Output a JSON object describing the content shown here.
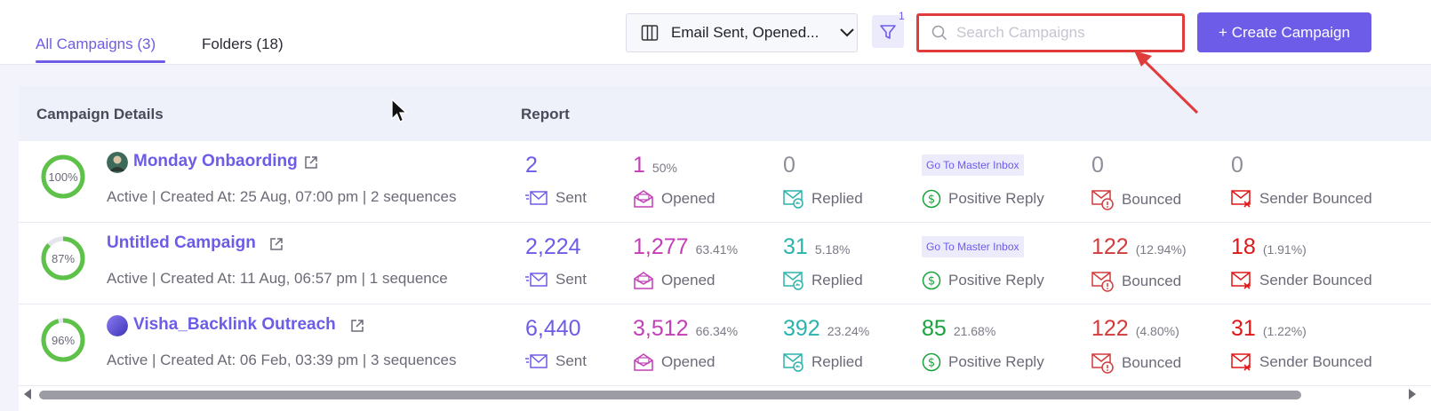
{
  "tabs": [
    {
      "label": "All Campaigns (3)",
      "active": true
    },
    {
      "label": "Folders (18)",
      "active": false
    }
  ],
  "columns_select": {
    "icon": "columns-icon",
    "value": "Email Sent, Opened..."
  },
  "filter": {
    "icon": "filter-icon",
    "count": "1"
  },
  "search": {
    "icon": "search-icon",
    "placeholder": "Search Campaigns",
    "value": ""
  },
  "create_button": {
    "label": "+ Create Campaign"
  },
  "table": {
    "headers": {
      "details": "Campaign Details",
      "report": "Report"
    },
    "rows": [
      {
        "progress": "100%",
        "progress_value": 100,
        "name": "Monday Onbaording",
        "meta": "Active | Created At: 25 Aug, 07:00 pm | 2 sequences",
        "sent": "2",
        "sent_label": "Sent",
        "opened": "1",
        "opened_pct": "50%",
        "opened_label": "Opened",
        "replied": "0",
        "replied_pct": "",
        "replied_label": "Replied",
        "positive": "Go To Master Inbox",
        "positive_pct": "",
        "positive_label": "Positive Reply",
        "bounced": "0",
        "bounced_pct": "",
        "bounced_label": "Bounced",
        "sender_bounced": "0",
        "sender_bounced_pct": "",
        "sender_bounced_label": "Sender Bounced"
      },
      {
        "progress": "87%",
        "progress_value": 87,
        "name": "Untitled Campaign",
        "meta": "Active | Created At: 11 Aug, 06:57 pm | 1 sequence",
        "sent": "2,224",
        "sent_label": "Sent",
        "opened": "1,277",
        "opened_pct": "63.41%",
        "opened_label": "Opened",
        "replied": "31",
        "replied_pct": "5.18%",
        "replied_label": "Replied",
        "positive": "Go To Master Inbox",
        "positive_pct": "",
        "positive_label": "Positive Reply",
        "bounced": "122",
        "bounced_pct": "(12.94%)",
        "bounced_label": "Bounced",
        "sender_bounced": "18",
        "sender_bounced_pct": "(1.91%)",
        "sender_bounced_label": "Sender Bounced"
      },
      {
        "progress": "96%",
        "progress_value": 96,
        "name": "Visha_Backlink Outreach",
        "meta": "Active | Created At: 06 Feb, 03:39 pm | 3 sequences",
        "sent": "6,440",
        "sent_label": "Sent",
        "opened": "3,512",
        "opened_pct": "66.34%",
        "opened_label": "Opened",
        "replied": "392",
        "replied_pct": "23.24%",
        "replied_label": "Replied",
        "positive": "85",
        "positive_pct": "21.68%",
        "positive_label": "Positive Reply",
        "bounced": "122",
        "bounced_pct": "(4.80%)",
        "bounced_label": "Bounced",
        "sender_bounced": "31",
        "sender_bounced_pct": "(1.22%)",
        "sender_bounced_label": "Sender Bounced"
      }
    ]
  },
  "colors": {
    "accent": "#6c5ce7",
    "ring": "#5ec24a",
    "opened": "#c23fb8",
    "replied": "#2bb3ad",
    "positive": "#17a33b",
    "bounced": "#d33b3b",
    "highlight": "#e03c3c"
  }
}
